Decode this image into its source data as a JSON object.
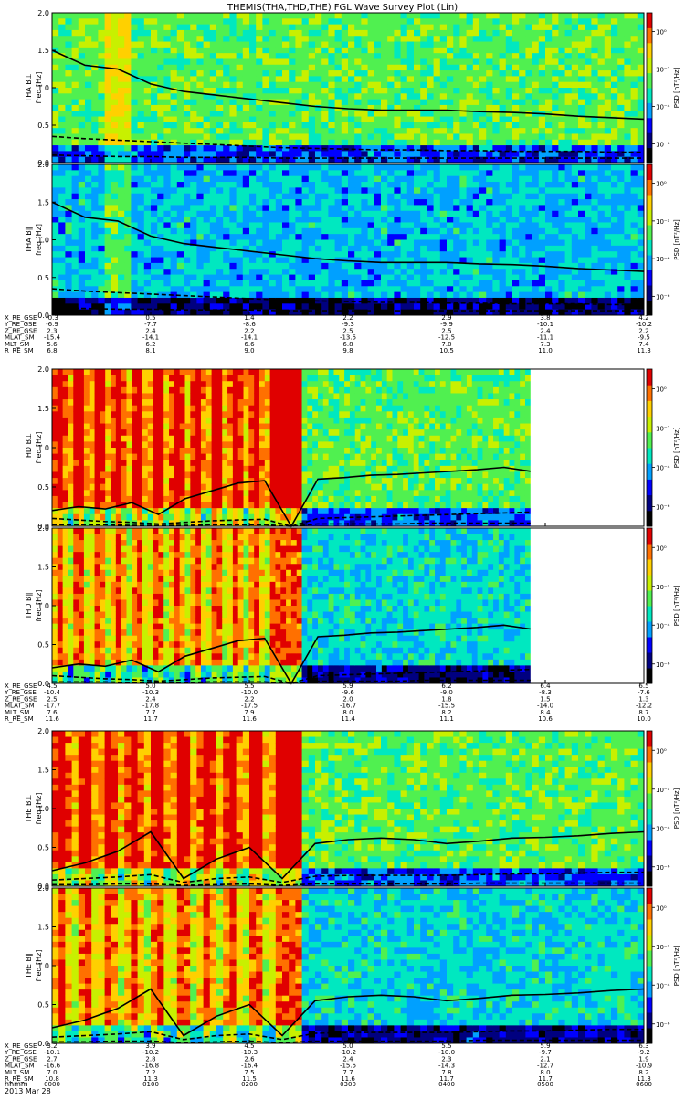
{
  "title": "THEMIS(THA,THD,THE) FGL Wave Survey Plot (Lin)",
  "date_label": "2013 Mar 28",
  "hhmm_label": "hhmm",
  "time_ticks": [
    "0000",
    "0100",
    "0200",
    "0300",
    "0400",
    "0500",
    "0600"
  ],
  "colorbar": {
    "label": "PSD [nT²/Hz]",
    "tick_labels": [
      "10⁰",
      "10⁻²",
      "10⁻⁴",
      "10⁻⁶"
    ],
    "tick_values": [
      1,
      0.01,
      0.0001,
      1e-06
    ],
    "range": [
      1e-07,
      10
    ],
    "scale": "log",
    "colormap": [
      "#000000",
      "#000080",
      "#0000ff",
      "#00a0ff",
      "#00e8c0",
      "#50f050",
      "#c8f000",
      "#ffd000",
      "#ff7000",
      "#e00000"
    ]
  },
  "chart_data": [
    {
      "type": "heatmap",
      "probe": "THA",
      "panels": [
        {
          "label": "THA B⊥",
          "ylabel": "freq [Hz]"
        },
        {
          "label": "THA B∥",
          "ylabel": "freq [Hz]"
        }
      ],
      "ylim": [
        0,
        2
      ],
      "y_ticks": [
        "0.0",
        "0.5",
        "1.0",
        "1.5",
        "2.0"
      ],
      "x": [
        "0000",
        "0100",
        "0200",
        "0300",
        "0400",
        "0500",
        "0600"
      ],
      "data_end_hour": 6.0,
      "spectral_character": "quiet",
      "lines": {
        "solid_fce": [
          1.5,
          1.3,
          1.25,
          1.05,
          0.95,
          0.9,
          0.85,
          0.8,
          0.75,
          0.72,
          0.7,
          0.7,
          0.7,
          0.68,
          0.67,
          0.65,
          0.62,
          0.6,
          0.58
        ],
        "dashed_low": [
          0.35,
          0.32,
          0.3,
          0.28,
          0.26,
          0.24,
          0.22,
          0.2,
          0.19,
          0.18,
          0.17,
          0.17,
          0.16,
          0.16,
          0.15,
          0.15,
          0.15,
          0.14,
          0.14
        ],
        "dashed_lowest": [
          0.1,
          0.09,
          0.08,
          0.08,
          0.07,
          0.07,
          0.07,
          0.06,
          0.06,
          0.06,
          0.06,
          0.06,
          0.06,
          0.06,
          0.06,
          0.06,
          0.06,
          0.06,
          0.06
        ]
      },
      "ephemeris": {
        "rows": [
          {
            "name": "X_RE_GSE",
            "values": [
              "-0.3",
              "0.5",
              "1.4",
              "2.2",
              "2.9",
              "3.8",
              "4.2"
            ]
          },
          {
            "name": "Y_RE_GSE",
            "values": [
              "-6.9",
              "-7.7",
              "-8.6",
              "-9.3",
              "-9.9",
              "-10.1",
              "-10.2"
            ]
          },
          {
            "name": "Z_RE_GSE",
            "values": [
              "2.3",
              "2.4",
              "2.2",
              "2.5",
              "2.5",
              "2.4",
              "2.2"
            ]
          },
          {
            "name": "MLAT_SM",
            "values": [
              "-15.4",
              "-14.1",
              "-14.1",
              "-13.5",
              "-12.5",
              "-11.1",
              "-9.5"
            ]
          },
          {
            "name": "MLT_SM",
            "values": [
              "5.6",
              "6.2",
              "6.6",
              "6.8",
              "7.0",
              "7.3",
              "7.4"
            ]
          },
          {
            "name": "R_RE_SM",
            "values": [
              "6.8",
              "8.1",
              "9.0",
              "9.8",
              "10.5",
              "11.0",
              "11.3"
            ]
          }
        ]
      }
    },
    {
      "type": "heatmap",
      "probe": "THD",
      "panels": [
        {
          "label": "THD B⊥",
          "ylabel": "freq [Hz]"
        },
        {
          "label": "THD B∥",
          "ylabel": "freq [Hz]"
        }
      ],
      "ylim": [
        0,
        2
      ],
      "y_ticks": [
        "0.0",
        "0.5",
        "1.0",
        "1.5",
        "2.0"
      ],
      "x": [
        "0000",
        "0100",
        "0200",
        "0300",
        "0400",
        "0500",
        "0600"
      ],
      "data_end_hour": 4.85,
      "spectral_character": "active",
      "lines": {
        "solid_fce": [
          0.2,
          0.25,
          0.22,
          0.3,
          0.15,
          0.35,
          0.45,
          0.55,
          0.58,
          0.0,
          0.6,
          0.62,
          0.65,
          0.66,
          0.68,
          0.7,
          0.72,
          0.75,
          0.7
        ],
        "dashed_low": [
          0.1,
          0.08,
          0.06,
          0.05,
          0.03,
          0.05,
          0.07,
          0.08,
          0.09,
          0.0,
          0.1,
          0.11,
          0.12,
          0.13,
          0.14,
          0.15,
          0.16,
          0.17,
          0.18
        ],
        "dashed_lowest": [
          0.02,
          0.02,
          0.02,
          0.01,
          0.01,
          0.01,
          0.02,
          0.02,
          0.02,
          0.0,
          0.03,
          0.03,
          0.03,
          0.03,
          0.04,
          0.04,
          0.04,
          0.04,
          0.04
        ]
      },
      "ephemeris": {
        "rows": [
          {
            "name": "X_RE_GSE",
            "values": [
              "4.5",
              "5.0",
              "5.5",
              "5.9",
              "6.2",
              "6.4",
              "6.5"
            ]
          },
          {
            "name": "Y_RE_GSE",
            "values": [
              "-10.4",
              "-10.3",
              "-10.0",
              "-9.6",
              "-9.0",
              "-8.3",
              "-7.6"
            ]
          },
          {
            "name": "Z_RE_GSE",
            "values": [
              "2.5",
              "2.4",
              "2.2",
              "2.0",
              "1.8",
              "1.5",
              "1.3"
            ]
          },
          {
            "name": "MLAT_SM",
            "values": [
              "-17.7",
              "-17.8",
              "-17.5",
              "-16.7",
              "-15.5",
              "-14.0",
              "-12.2"
            ]
          },
          {
            "name": "MLT_SM",
            "values": [
              "7.6",
              "7.7",
              "7.9",
              "8.0",
              "8.2",
              "8.4",
              "8.7"
            ]
          },
          {
            "name": "R_RE_SM",
            "values": [
              "11.6",
              "11.7",
              "11.6",
              "11.4",
              "11.1",
              "10.6",
              "10.0"
            ]
          }
        ]
      }
    },
    {
      "type": "heatmap",
      "probe": "THE",
      "panels": [
        {
          "label": "THE B⊥",
          "ylabel": "freq [Hz]"
        },
        {
          "label": "THE B∥",
          "ylabel": "freq [Hz]"
        }
      ],
      "ylim": [
        0,
        2
      ],
      "y_ticks": [
        "0.0",
        "0.5",
        "1.0",
        "1.5",
        "2.0"
      ],
      "x": [
        "0000",
        "0100",
        "0200",
        "0300",
        "0400",
        "0500",
        "0600"
      ],
      "data_end_hour": 6.0,
      "spectral_character": "active",
      "lines": {
        "solid_fce": [
          0.2,
          0.3,
          0.45,
          0.7,
          0.1,
          0.35,
          0.5,
          0.1,
          0.55,
          0.6,
          0.62,
          0.6,
          0.55,
          0.58,
          0.62,
          0.63,
          0.65,
          0.68,
          0.7
        ],
        "dashed_low": [
          0.08,
          0.1,
          0.12,
          0.15,
          0.05,
          0.1,
          0.12,
          0.05,
          0.13,
          0.14,
          0.14,
          0.14,
          0.14,
          0.15,
          0.16,
          0.16,
          0.17,
          0.18,
          0.18
        ],
        "dashed_lowest": [
          0.02,
          0.02,
          0.03,
          0.03,
          0.01,
          0.02,
          0.03,
          0.01,
          0.03,
          0.03,
          0.03,
          0.03,
          0.03,
          0.04,
          0.04,
          0.04,
          0.04,
          0.04,
          0.04
        ]
      },
      "ephemeris": {
        "rows": [
          {
            "name": "X_RE_GSE",
            "values": [
              "3.2",
              "3.9",
              "4.5",
              "5.0",
              "5.5",
              "5.9",
              "6.3"
            ]
          },
          {
            "name": "Y_RE_GSE",
            "values": [
              "-10.1",
              "-10.2",
              "-10.3",
              "-10.2",
              "-10.0",
              "-9.7",
              "-9.2"
            ]
          },
          {
            "name": "Z_RE_GSE",
            "values": [
              "2.7",
              "2.8",
              "2.6",
              "2.4",
              "2.3",
              "2.1",
              "1.9"
            ]
          },
          {
            "name": "MLAT_SM",
            "values": [
              "-16.6",
              "-16.8",
              "-16.4",
              "-15.5",
              "-14.3",
              "-12.7",
              "-10.9"
            ]
          },
          {
            "name": "MLT_SM",
            "values": [
              "7.0",
              "7.2",
              "7.5",
              "7.7",
              "7.8",
              "8.0",
              "8.2"
            ]
          },
          {
            "name": "R_RE_SM",
            "values": [
              "10.8",
              "11.3",
              "11.5",
              "11.6",
              "11.7",
              "11.7",
              "11.3"
            ]
          }
        ]
      }
    }
  ]
}
